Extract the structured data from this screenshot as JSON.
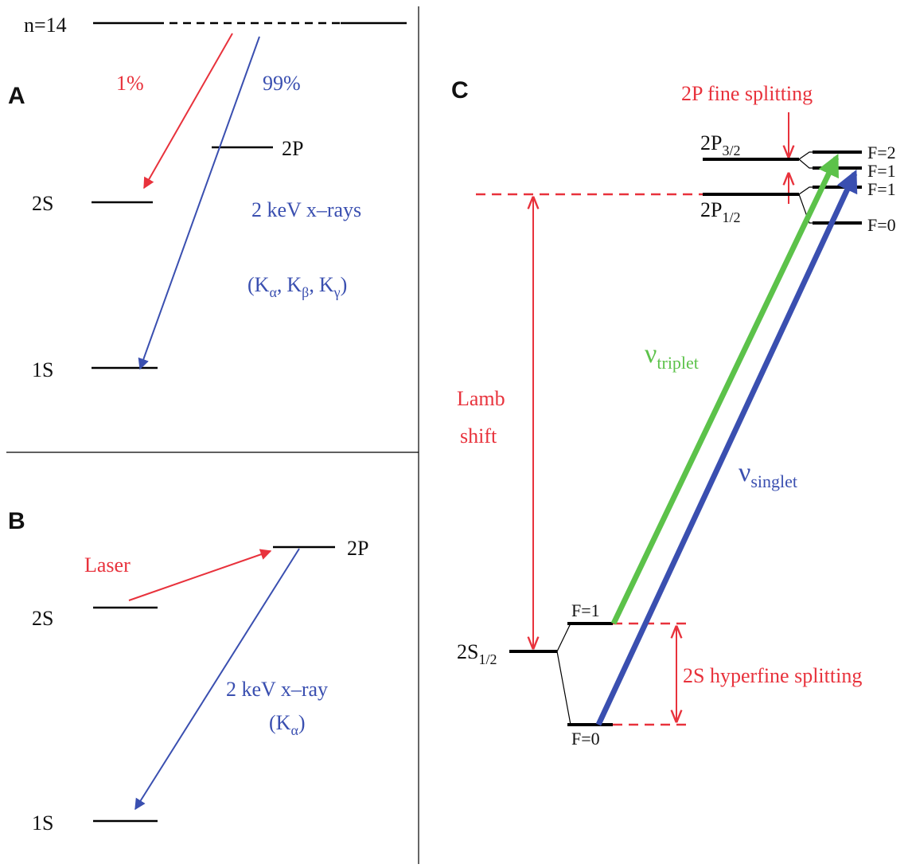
{
  "panels": {
    "a": {
      "label": "A",
      "levels": {
        "n14": "n=14",
        "two_p": "2P",
        "two_s": "2S",
        "one_s": "1S"
      },
      "arrows": {
        "pct_1": "1%",
        "pct_99": "99%"
      },
      "xray_text": "2 keV x–rays",
      "xray_lines": {
        "k": "K",
        "alpha": "α",
        "beta": "β",
        "gamma": "γ",
        "open": "(",
        "close": ")",
        "comma": ","
      }
    },
    "b": {
      "label": "B",
      "levels": {
        "two_p": "2P",
        "two_s": "2S",
        "one_s": "1S"
      },
      "laser": "Laser",
      "xray_text": "2 keV x–ray",
      "xray_line": {
        "open": "(",
        "k": "K",
        "alpha": "α",
        "close": ")"
      }
    },
    "c": {
      "label": "C",
      "fine_splitting": "2P fine splitting",
      "hyperfine_splitting": "2S hyperfine splitting",
      "lamb": "Lamb",
      "shift": "shift",
      "p32": {
        "main": "2P",
        "sub": "3/2"
      },
      "p12": {
        "main": "2P",
        "sub": "1/2"
      },
      "s12": {
        "main": "2S",
        "sub": "1/2"
      },
      "f_labels": {
        "p32_upper": "F=2",
        "p32_lower": "F=1",
        "p12_upper": "F=1",
        "p12_lower": "F=0",
        "s_upper": "F=1",
        "s_lower": "F=0"
      },
      "nu_triplet": {
        "main": "ν",
        "sub": "triplet"
      },
      "nu_singlet": {
        "main": "ν",
        "sub": "singlet"
      }
    }
  },
  "colors": {
    "red": "#e8323c",
    "blue": "#3a4fb0",
    "green": "#5cc24a",
    "black": "#111111"
  }
}
